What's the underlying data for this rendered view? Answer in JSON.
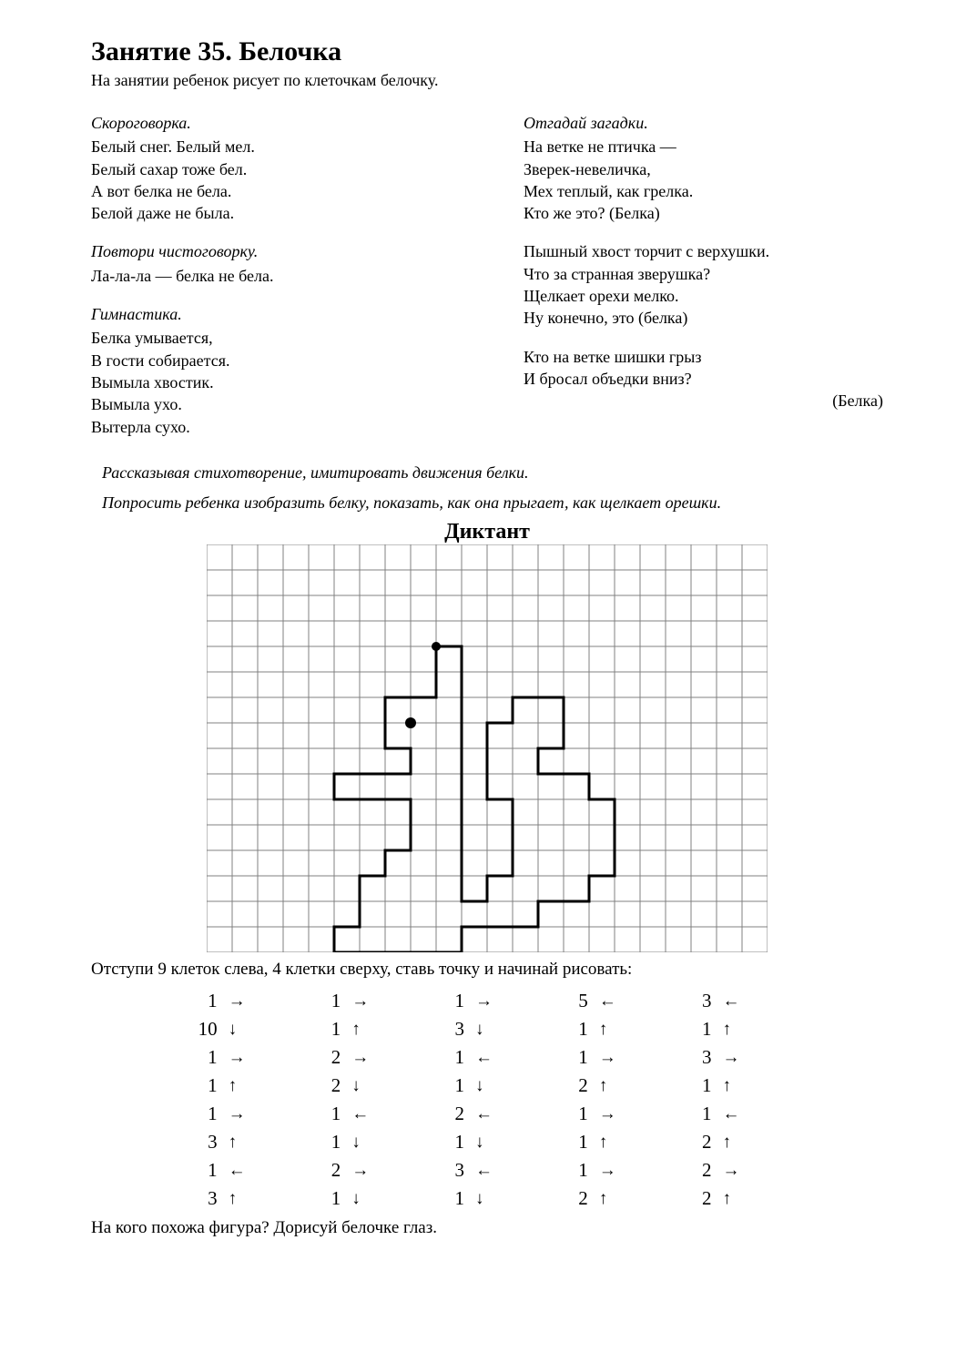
{
  "title": "Занятие 35. Белочка",
  "subtitle": "На занятии ребенок рисует по клеточкам белочку.",
  "left_column": [
    {
      "head": "Скороговорка.",
      "lines": [
        "Белый снег. Белый мел.",
        "Белый сахар тоже бел.",
        "А вот белка не бела.",
        "Белой даже не была."
      ]
    },
    {
      "head": "Повтори чистоговорку.",
      "lines": [
        "Ла-ла-ла — белка не бела."
      ]
    },
    {
      "head": "Гимнастика.",
      "lines": [
        "Белка умывается,",
        "В гости собирается.",
        "Вымыла хвостик.",
        "Вымыла ухо.",
        "Вытерла сухо."
      ]
    }
  ],
  "right_column": [
    {
      "head": "Отгадай загадки.",
      "lines": [
        "На ветке не птичка —",
        "Зверек-невеличка,",
        "Мех теплый, как грелка.",
        "Кто же это?   (Белка)"
      ]
    },
    {
      "head": "",
      "lines": [
        "Пышный хвост торчит с верхушки.",
        "Что за странная зверушка?",
        "Щелкает орехи мелко.",
        "Ну конечно, это   (белка)"
      ]
    },
    {
      "head": "",
      "lines": [
        "Кто на ветке шишки грыз",
        "И бросал объедки вниз?"
      ],
      "tail": "(Белка)"
    }
  ],
  "instructions": [
    "Рассказывая стихотворение, имитировать движения белки.",
    "Попросить ребенка изобразить белку, показать, как она прыгает, как щелкает орешки."
  ],
  "diktant_title": "Диктант",
  "grid": {
    "cols": 22,
    "rows": 16,
    "cell": 28,
    "line_color": "#808080",
    "outline_color": "#000000",
    "start_dot": {
      "col": 9,
      "row": 4
    },
    "eye_dot": {
      "col": 8,
      "row": 7
    }
  },
  "grid_caption": "Отступи 9 клеток слева, 4 клетки сверху, ставь точку и начинай рисовать:",
  "bottom_line": "На кого похожа фигура? Дорисуй белочке глаз.",
  "arrow_glyphs": {
    "R": "→",
    "L": "←",
    "U": "↑",
    "D": "↓"
  },
  "steps": [
    [
      {
        "n": 1,
        "d": "R"
      },
      {
        "n": 1,
        "d": "R"
      },
      {
        "n": 1,
        "d": "R"
      },
      {
        "n": 5,
        "d": "L"
      },
      {
        "n": 3,
        "d": "L"
      }
    ],
    [
      {
        "n": 10,
        "d": "D"
      },
      {
        "n": 1,
        "d": "U"
      },
      {
        "n": 3,
        "d": "D"
      },
      {
        "n": 1,
        "d": "U"
      },
      {
        "n": 1,
        "d": "U"
      }
    ],
    [
      {
        "n": 1,
        "d": "R"
      },
      {
        "n": 2,
        "d": "R"
      },
      {
        "n": 1,
        "d": "L"
      },
      {
        "n": 1,
        "d": "R"
      },
      {
        "n": 3,
        "d": "R"
      }
    ],
    [
      {
        "n": 1,
        "d": "U"
      },
      {
        "n": 2,
        "d": "D"
      },
      {
        "n": 1,
        "d": "D"
      },
      {
        "n": 2,
        "d": "U"
      },
      {
        "n": 1,
        "d": "U"
      }
    ],
    [
      {
        "n": 1,
        "d": "R"
      },
      {
        "n": 1,
        "d": "L"
      },
      {
        "n": 2,
        "d": "L"
      },
      {
        "n": 1,
        "d": "R"
      },
      {
        "n": 1,
        "d": "L"
      }
    ],
    [
      {
        "n": 3,
        "d": "U"
      },
      {
        "n": 1,
        "d": "D"
      },
      {
        "n": 1,
        "d": "D"
      },
      {
        "n": 1,
        "d": "U"
      },
      {
        "n": 2,
        "d": "U"
      }
    ],
    [
      {
        "n": 1,
        "d": "L"
      },
      {
        "n": 2,
        "d": "R"
      },
      {
        "n": 3,
        "d": "L"
      },
      {
        "n": 1,
        "d": "R"
      },
      {
        "n": 2,
        "d": "R"
      }
    ],
    [
      {
        "n": 3,
        "d": "U"
      },
      {
        "n": 1,
        "d": "D"
      },
      {
        "n": 1,
        "d": "D"
      },
      {
        "n": 2,
        "d": "U"
      },
      {
        "n": 2,
        "d": "U"
      }
    ]
  ]
}
